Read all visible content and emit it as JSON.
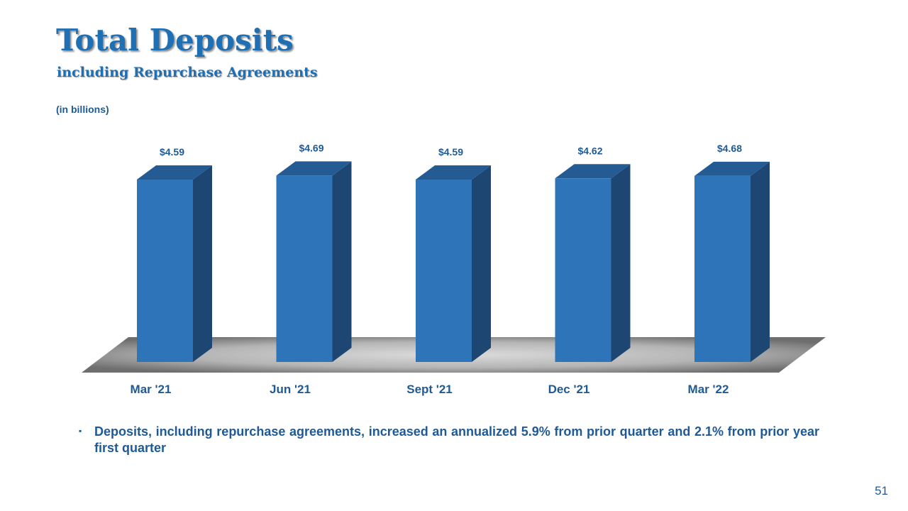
{
  "slide": {
    "title": "Total Deposits",
    "subtitle": "including Repurchase Agreements",
    "units_note": "(in billions)",
    "bullet": "Deposits, including repurchase agreements, increased an annualized 5.9% from prior quarter and 2.1% from prior year first quarter",
    "page_number": "51"
  },
  "colors": {
    "title": "#1f6fb5",
    "text": "#1f5a96",
    "bar_front": "#2e74b8",
    "bar_side": "#1d4672",
    "bar_top": "#245b93",
    "floor_light": "#d9d9d9",
    "floor_dark": "#707070"
  },
  "chart_data": {
    "type": "bar",
    "style": "3d-column",
    "categories": [
      "Mar '21",
      "Jun '21",
      "Sept '21",
      "Dec '21",
      "Mar '22"
    ],
    "values": [
      4.59,
      4.69,
      4.59,
      4.62,
      4.68
    ],
    "data_labels": [
      "$4.59",
      "$4.69",
      "$4.59",
      "$4.62",
      "$4.68"
    ],
    "title": "",
    "xlabel": "",
    "ylabel": "",
    "ylim": [
      0,
      4.9
    ],
    "grid": false,
    "legend": "none"
  }
}
